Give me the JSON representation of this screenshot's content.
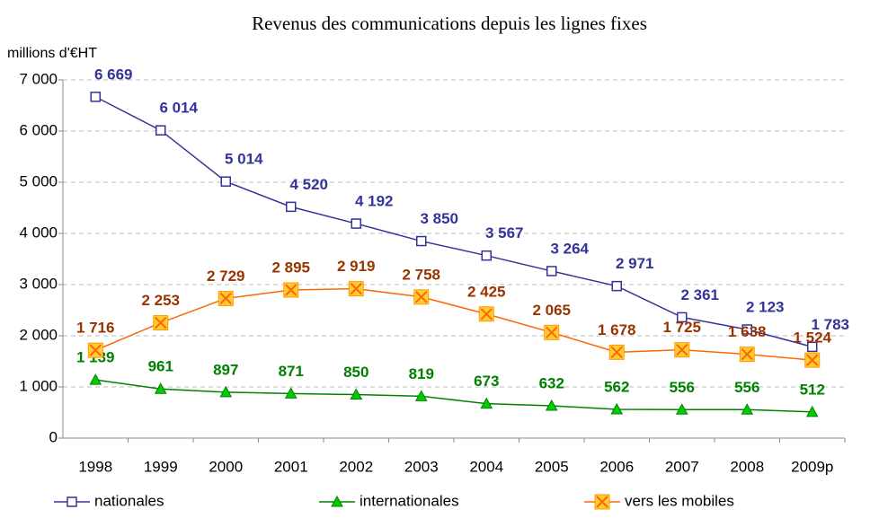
{
  "chart_data": {
    "type": "line",
    "title": "Revenus des communications depuis les lignes fixes",
    "y_label": "millions d'€HT",
    "categories": [
      "1998",
      "1999",
      "2000",
      "2001",
      "2002",
      "2003",
      "2004",
      "2005",
      "2006",
      "2007",
      "2008",
      "2009p"
    ],
    "ylim": [
      0,
      7000
    ],
    "yticks": [
      0,
      {
        "value": 1000,
        "label": "1 000"
      },
      {
        "value": 2000,
        "label": "2 000"
      },
      {
        "value": 3000,
        "label": "3 000"
      },
      {
        "value": 4000,
        "label": "4 000"
      },
      {
        "value": 5000,
        "label": "5 000"
      },
      {
        "value": 6000,
        "label": "6 000"
      },
      {
        "value": 7000,
        "label": "7 000"
      }
    ],
    "grid": true,
    "legend": "bottom",
    "series": [
      {
        "name": "nationales",
        "color": "#333399",
        "marker": "square",
        "values": [
          6669,
          6014,
          5014,
          4520,
          4192,
          3850,
          3567,
          3264,
          2971,
          2361,
          2123,
          1783
        ],
        "value_labels": [
          "6 669",
          "6 014",
          "5 014",
          "4 520",
          "4 192",
          "3 850",
          "3 567",
          "3 264",
          "2 971",
          "2 361",
          "2 123",
          "1 783"
        ]
      },
      {
        "name": "internationales",
        "color": "#008000",
        "marker": "triangle",
        "values": [
          1139,
          961,
          897,
          871,
          850,
          819,
          673,
          632,
          562,
          556,
          556,
          512
        ],
        "value_labels": [
          "1 139",
          "961",
          "897",
          "871",
          "850",
          "819",
          "673",
          "632",
          "562",
          "556",
          "556",
          "512"
        ]
      },
      {
        "name": "vers les mobiles",
        "color": "#ff6600",
        "marker": "xsquare",
        "values": [
          1716,
          2253,
          2729,
          2895,
          2919,
          2758,
          2425,
          2065,
          1678,
          1725,
          1638,
          1524
        ],
        "value_labels": [
          "1 716",
          "2 253",
          "2 729",
          "2 895",
          "2 919",
          "2 758",
          "2 425",
          "2 065",
          "1 678",
          "1 725",
          "1 638",
          "1 524"
        ]
      }
    ]
  }
}
